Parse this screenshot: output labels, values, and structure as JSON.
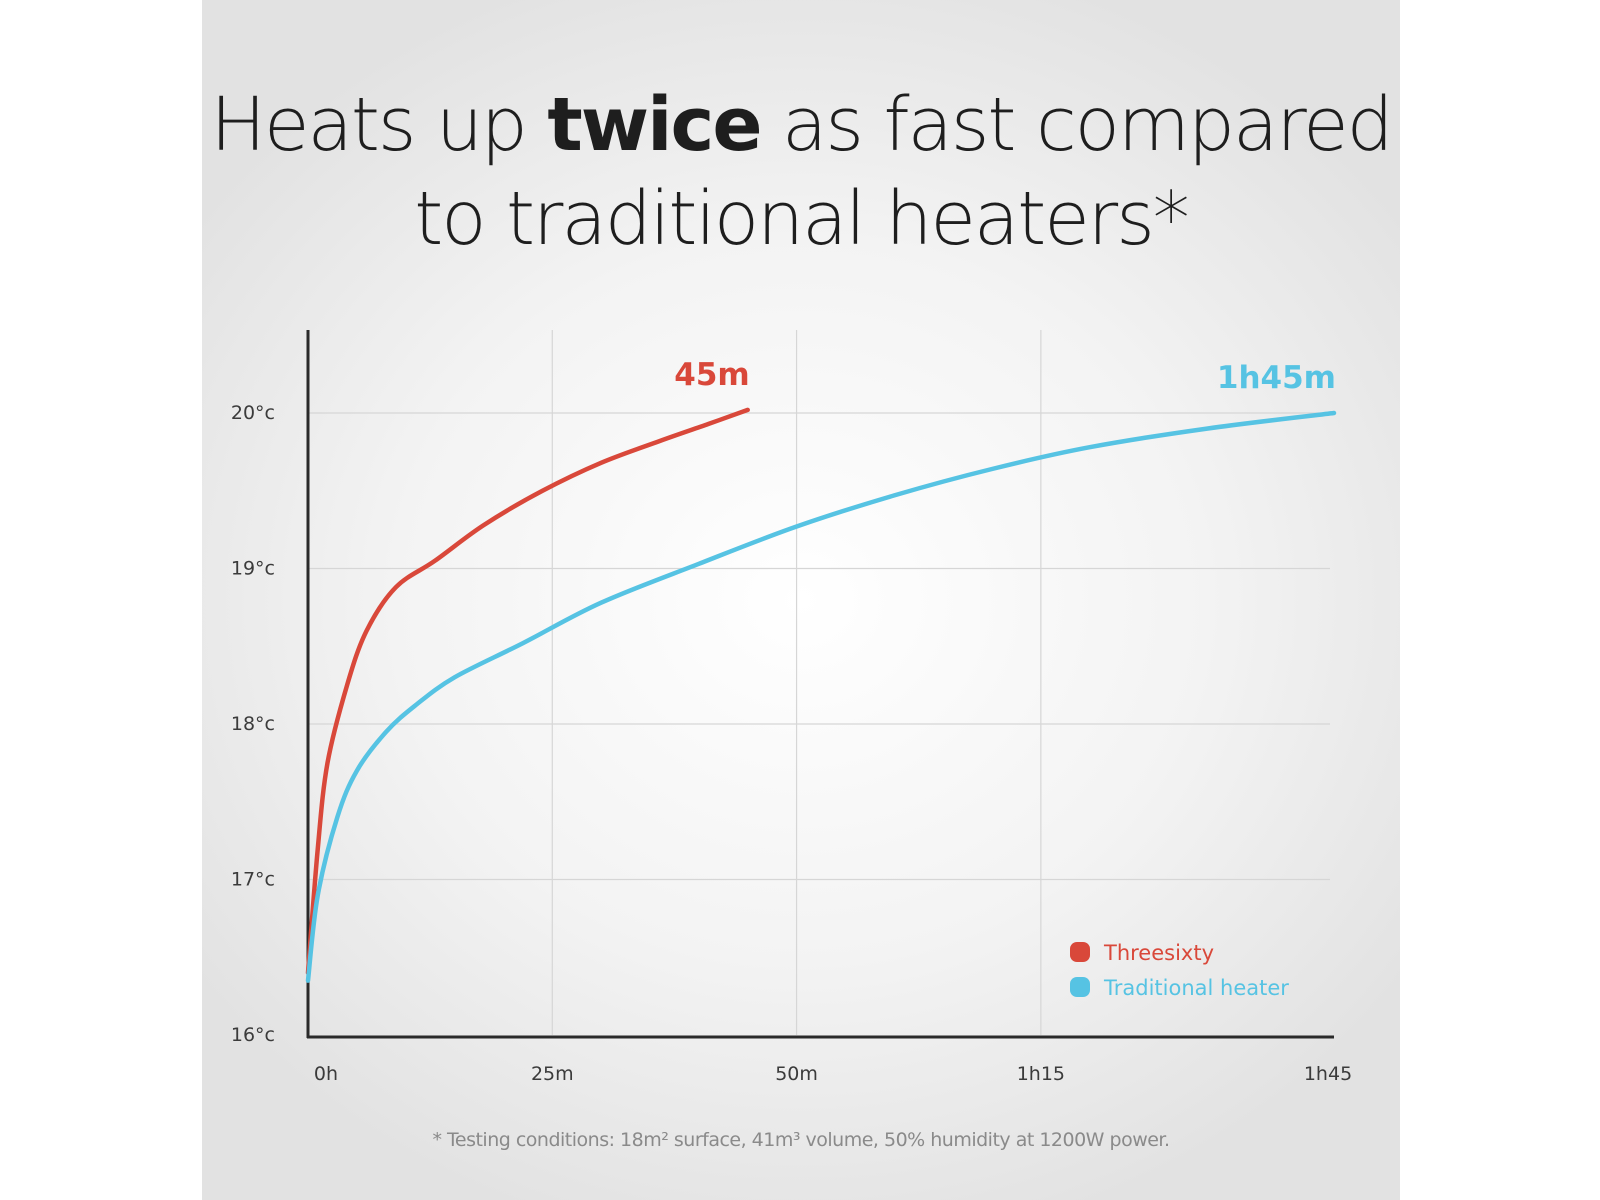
{
  "header": {
    "title_before": "Heats up ",
    "title_bold": "twice",
    "title_after": " as fast compared to traditional heaters*"
  },
  "footnote": "* Testing conditions: 18m² surface, 41m³ volume, 50% humidity at 1200W power.",
  "colors": {
    "threesixty": "#d9483a",
    "traditional": "#56c3e3",
    "grid": "#d6d6d6",
    "axis": "#2a2a2a"
  },
  "chart_data": {
    "type": "line",
    "title": "Heats up twice as fast compared to traditional heaters*",
    "xlabel": "",
    "ylabel": "",
    "x_unit": "minutes",
    "xlim": [
      0,
      105
    ],
    "ylim": [
      16,
      20.5
    ],
    "x_ticks": [
      {
        "value": 0,
        "label": "0h"
      },
      {
        "value": 25,
        "label": "25m"
      },
      {
        "value": 50,
        "label": "50m"
      },
      {
        "value": 75,
        "label": "1h15"
      },
      {
        "value": 105,
        "label": "1h45"
      }
    ],
    "y_ticks": [
      {
        "value": 16,
        "label": "16°c"
      },
      {
        "value": 17,
        "label": "17°c"
      },
      {
        "value": 18,
        "label": "18°c"
      },
      {
        "value": 19,
        "label": "19°c"
      },
      {
        "value": 20,
        "label": "20°c"
      }
    ],
    "grid": true,
    "legend_position": "bottom-right",
    "series": [
      {
        "name": "Threesixty",
        "color": "#d9483a",
        "end_label": "45m",
        "points": [
          [
            0,
            16.4
          ],
          [
            1,
            17.2
          ],
          [
            2,
            17.75
          ],
          [
            4,
            18.25
          ],
          [
            6,
            18.6
          ],
          [
            9,
            18.88
          ],
          [
            13,
            19.05
          ],
          [
            18,
            19.28
          ],
          [
            24,
            19.5
          ],
          [
            30,
            19.68
          ],
          [
            36,
            19.82
          ],
          [
            41,
            19.93
          ],
          [
            45,
            20.02
          ]
        ]
      },
      {
        "name": "Traditional heater",
        "color": "#56c3e3",
        "end_label": "1h45m",
        "points": [
          [
            0,
            16.35
          ],
          [
            1,
            16.9
          ],
          [
            3,
            17.4
          ],
          [
            5,
            17.7
          ],
          [
            8,
            17.95
          ],
          [
            11,
            18.12
          ],
          [
            15,
            18.3
          ],
          [
            22,
            18.52
          ],
          [
            30,
            18.78
          ],
          [
            40,
            19.03
          ],
          [
            50,
            19.27
          ],
          [
            60,
            19.47
          ],
          [
            70,
            19.64
          ],
          [
            80,
            19.78
          ],
          [
            92,
            19.9
          ],
          [
            105,
            20.0
          ]
        ]
      }
    ]
  }
}
